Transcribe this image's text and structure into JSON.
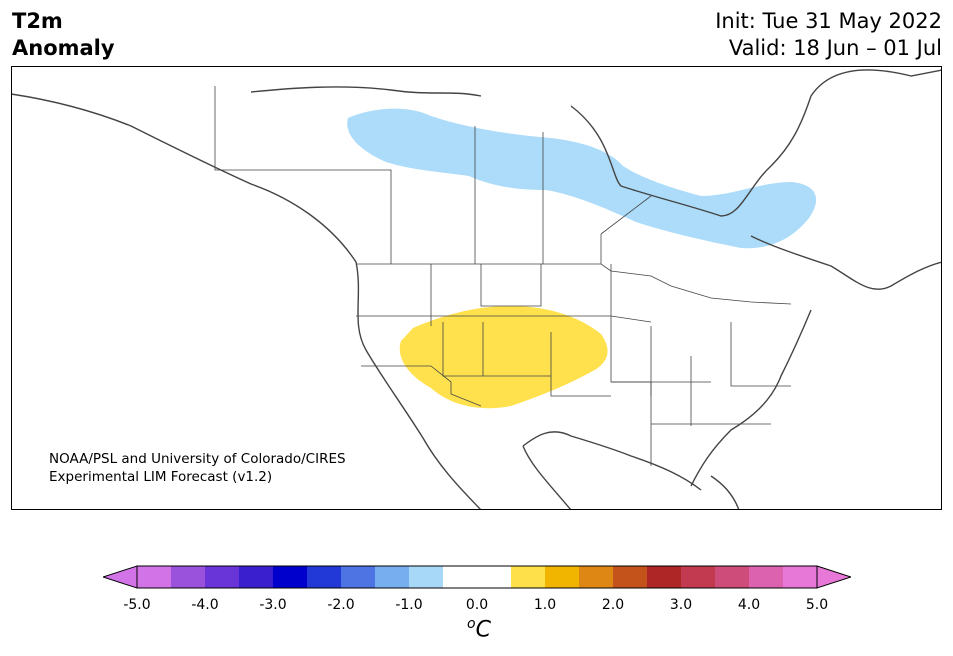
{
  "header": {
    "variable": "T2m",
    "field": "Anomaly",
    "init": "Init: Tue 31 May 2022",
    "valid": "Valid: 18 Jun – 01 Jul"
  },
  "credit": {
    "line1": "NOAA/PSL and University of Colorado/CIRES",
    "line2": "Experimental LIM Forecast (v1.2)"
  },
  "colorbar": {
    "unit_sup": "o",
    "unit": "C",
    "ticks": [
      "-5.0",
      "-4.0",
      "-3.0",
      "-2.0",
      "-1.0",
      "0.0",
      "1.0",
      "2.0",
      "3.0",
      "4.0",
      "5.0"
    ],
    "colors": [
      "#d373e8",
      "#9a52dc",
      "#6a35d8",
      "#3a1fcf",
      "#0000cc",
      "#2239d8",
      "#4d74e2",
      "#76aef0",
      "#a8d8f8",
      "#ffffff",
      "#ffffff",
      "#fde04a",
      "#f1b500",
      "#df8715",
      "#c4531b",
      "#ae2626",
      "#c13a50",
      "#cd4c79",
      "#dc62b0",
      "#e778d8"
    ],
    "extend_min_color": "#d373e8",
    "extend_max_color": "#e778d8"
  },
  "map": {
    "region": "North America",
    "anomaly_areas": [
      {
        "label": "cold anomaly, Canadian Prairies to Quebec",
        "value": "-1.0 to -0.5",
        "color": "#acdcfa"
      },
      {
        "label": "warm anomaly, US Southwest / central Plains",
        "value": "0.5 to 1.0",
        "color": "#ffe14d"
      }
    ]
  }
}
